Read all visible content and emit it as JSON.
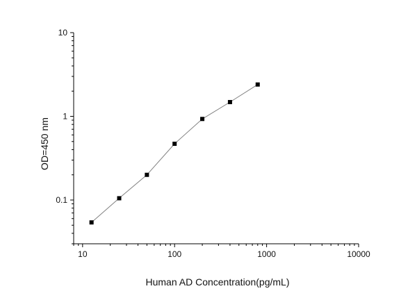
{
  "chart_data": {
    "type": "scatter",
    "title": "",
    "xlabel": "Human AD Concentration(pg/mL)",
    "ylabel": "OD=450 nm",
    "x_scale": "log",
    "y_scale": "log",
    "xlim": [
      8,
      10000
    ],
    "ylim": [
      0.03,
      10
    ],
    "x_ticks": [
      10,
      100,
      1000,
      10000
    ],
    "x_tick_labels": [
      "10",
      "100",
      "1000",
      "10000"
    ],
    "y_ticks": [
      0.1,
      1,
      10
    ],
    "y_tick_labels": [
      "0.1",
      "1",
      "10"
    ],
    "grid": false,
    "legend": "none",
    "series": [
      {
        "x": [
          12.5,
          25,
          50,
          100,
          200,
          400,
          800
        ],
        "y": [
          0.054,
          0.105,
          0.2,
          0.47,
          0.93,
          1.48,
          2.4
        ],
        "marker": "square",
        "line": true,
        "marker_color": "#000000",
        "line_color": "#808080"
      }
    ]
  }
}
